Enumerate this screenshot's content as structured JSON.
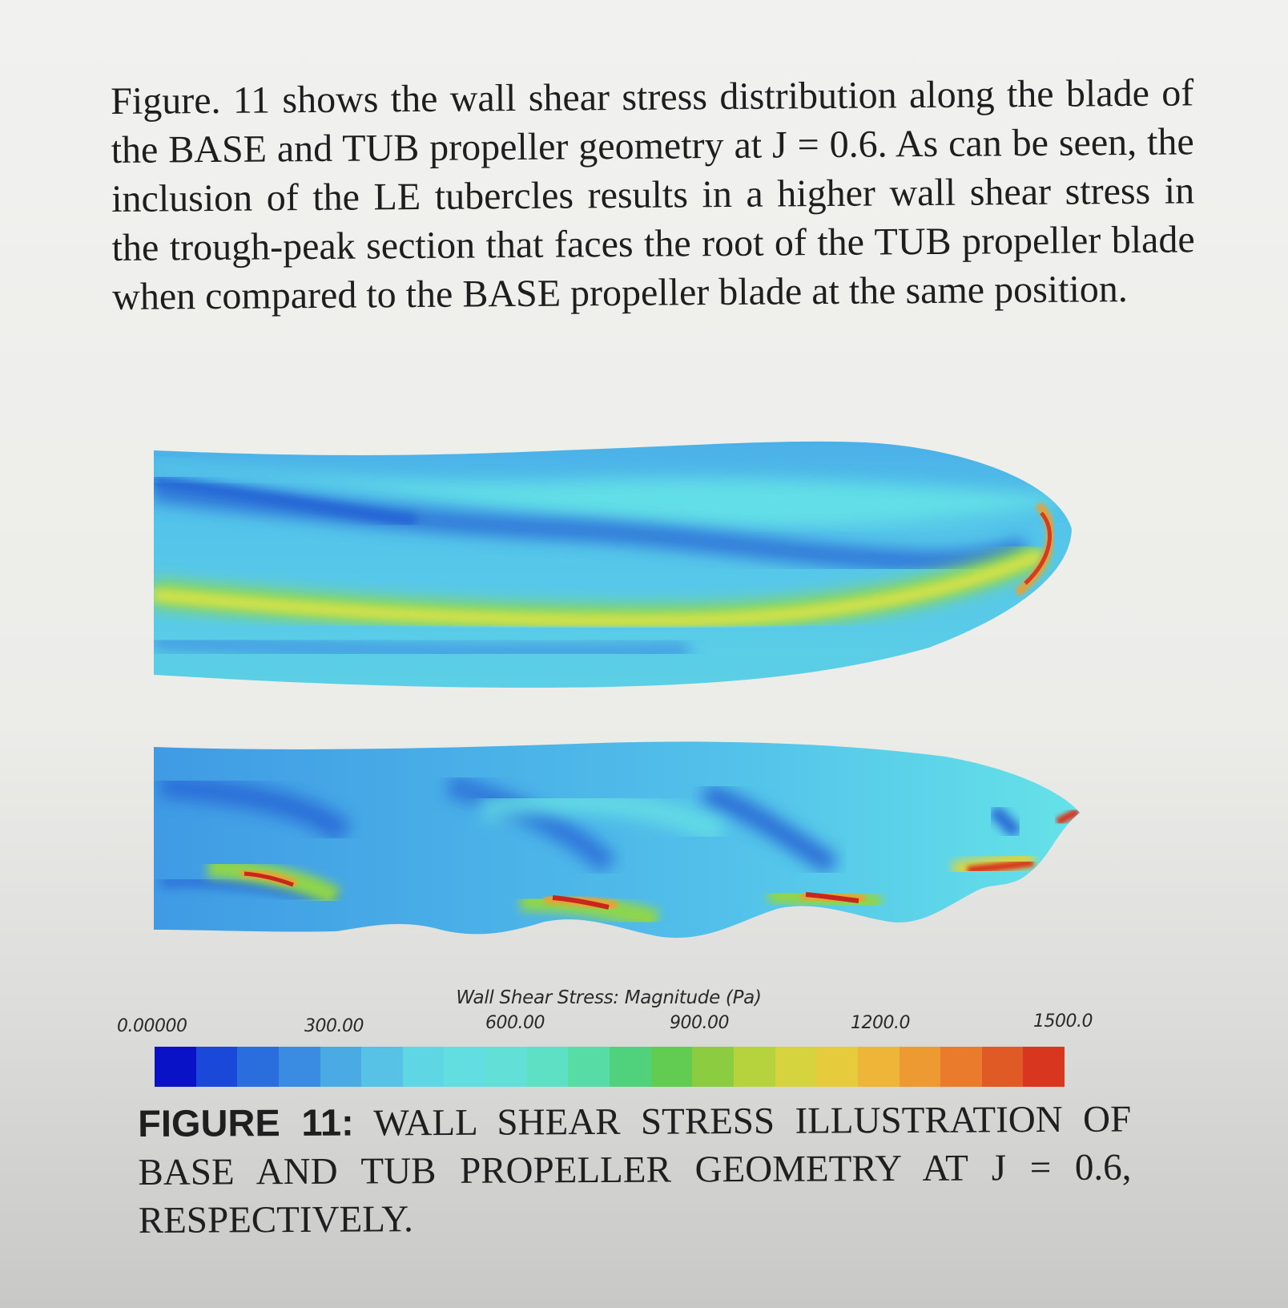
{
  "paragraph": {
    "text": "Figure. 11 shows the wall shear stress distribution along the blade of the BASE and TUB propeller geometry at J = 0.6. As can be seen, the inclusion of the LE tubercles results in a higher wall shear stress in the trough-peak section that faces the root of the TUB propeller blade when compared to the BASE propeller blade at the same position."
  },
  "colorbar": {
    "title": "Wall Shear Stress: Magnitude (Pa)",
    "ticks": [
      "0.00000",
      "300.00",
      "600.00",
      "900.00",
      "1200.0",
      "1500.0"
    ],
    "colors": [
      "#0a12c8",
      "#1a48d8",
      "#2a6ede",
      "#3a8ce2",
      "#4aaae4",
      "#58c2e6",
      "#5ed6e4",
      "#62dee0",
      "#62e0d8",
      "#5ee0c4",
      "#56dca4",
      "#50d27c",
      "#62cc52",
      "#8ccc40",
      "#b6d23c",
      "#d6d43e",
      "#e6cc3c",
      "#eeb638",
      "#ee9a32",
      "#ea7a2c",
      "#e05a26",
      "#d8361e"
    ]
  },
  "caption": {
    "label": "FIGURE 11:",
    "text": "WALL SHEAR STRESS ILLUSTRATION OF BASE AND TUB PROPELLER GEOMETRY AT J = 0.6, RESPECTIVELY."
  }
}
